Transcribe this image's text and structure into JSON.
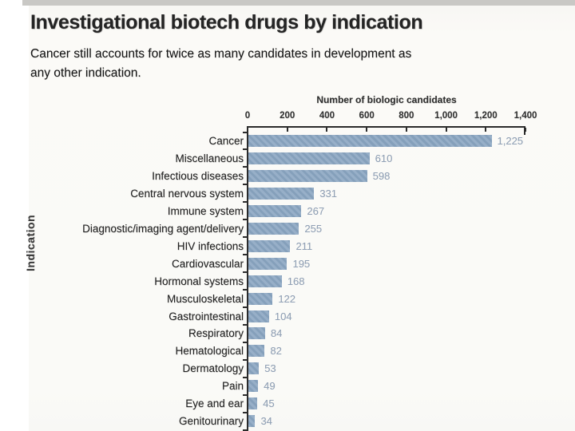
{
  "page": {
    "title": "Investigational biotech drugs by indication",
    "subtitle_line1": "Cancer still accounts for twice as many candidates in development as",
    "subtitle_line2": "any other indication."
  },
  "chart_data": {
    "type": "bar",
    "orientation": "horizontal",
    "title": "Investigational biotech drugs by indication",
    "subtitle": "Cancer still accounts for twice as many candidates in development as any other indication.",
    "xlabel": "Number of biologic candidates",
    "ylabel": "Indication",
    "xlim": [
      0,
      1400
    ],
    "xticks": [
      0,
      200,
      400,
      600,
      800,
      1000,
      1200,
      1400
    ],
    "xtick_labels": [
      "0",
      "200",
      "400",
      "600",
      "800",
      "1,000",
      "1,200",
      "1,400"
    ],
    "grid": false,
    "categories": [
      "Cancer",
      "Miscellaneous",
      "Infectious diseases",
      "Central nervous system",
      "Immune system",
      "Diagnostic/imaging agent/delivery",
      "HIV infections",
      "Cardiovascular",
      "Hormonal systems",
      "Musculoskeletal",
      "Gastrointestinal",
      "Respiratory",
      "Hematological",
      "Dermatology",
      "Pain",
      "Eye and ear",
      "Genitourinary"
    ],
    "values": [
      1225,
      610,
      598,
      331,
      267,
      255,
      211,
      195,
      168,
      122,
      104,
      84,
      82,
      53,
      49,
      45,
      34
    ],
    "value_labels": [
      "1,225",
      "610",
      "598",
      "331",
      "267",
      "255",
      "211",
      "195",
      "168",
      "122",
      "104",
      "84",
      "82",
      "53",
      "49",
      "45",
      "34"
    ],
    "colors": {
      "bar": "#8ea8c3",
      "value_label": "#91a1b6",
      "axis": "#2b2b2b",
      "category_label": "#222222",
      "paper": "#fafaf7"
    }
  }
}
